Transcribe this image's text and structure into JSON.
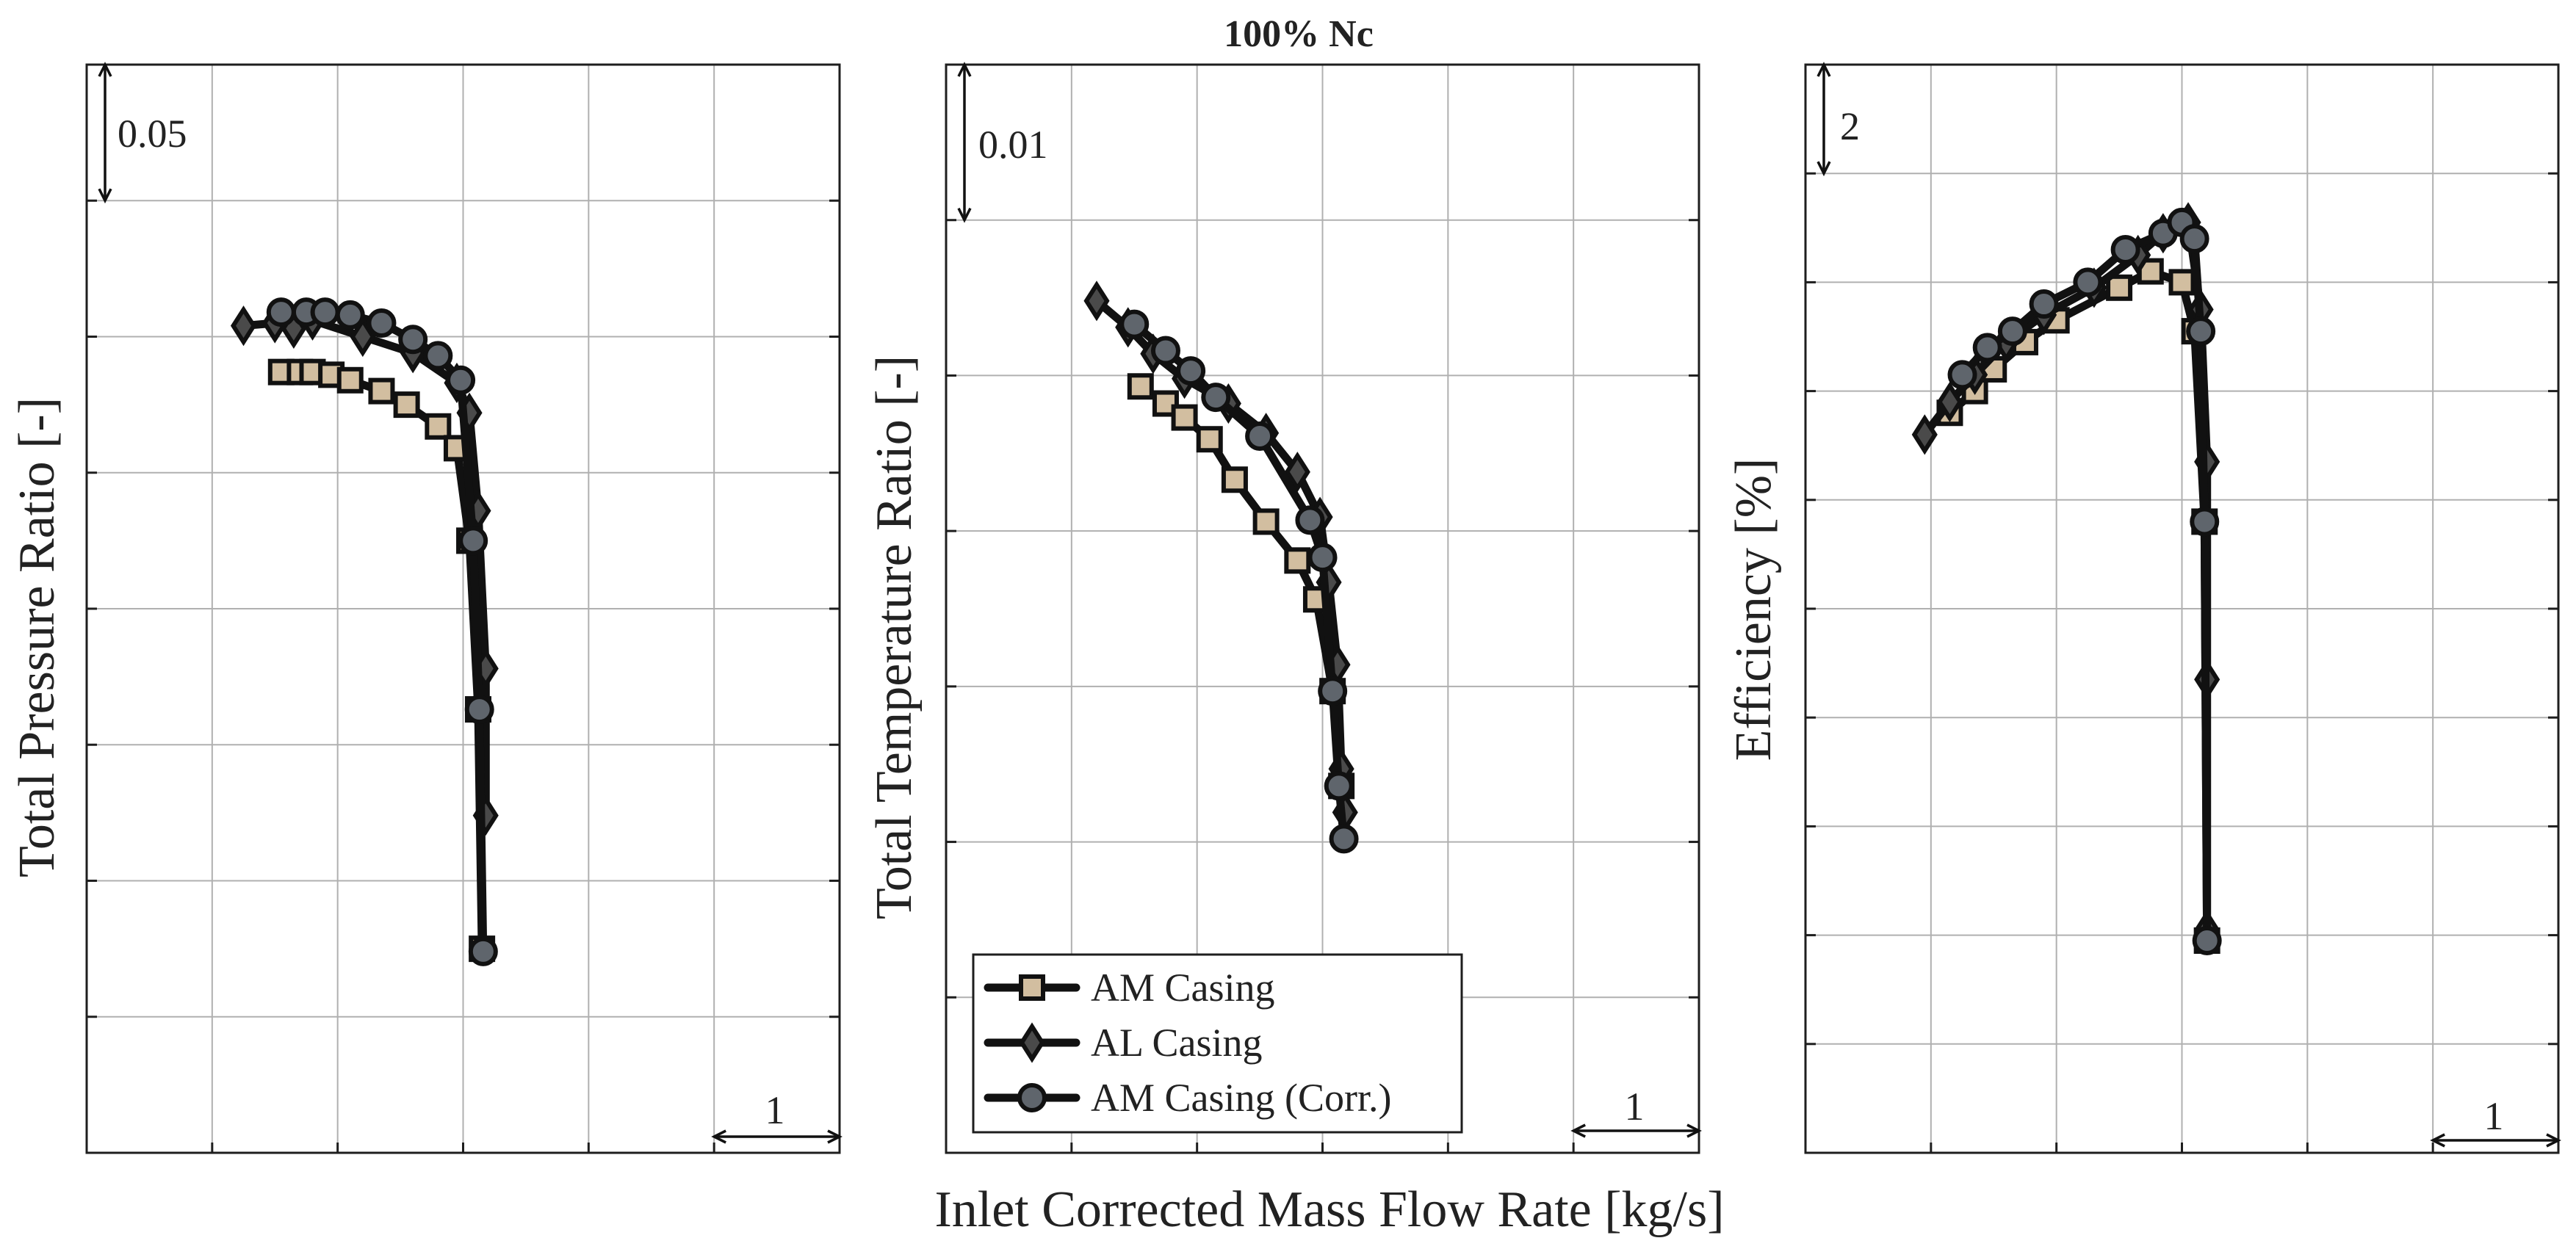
{
  "figure": {
    "title": "100% Nc",
    "xlabel": "Inlet Corrected Mass Flow Rate [kg/s]"
  },
  "colors": {
    "am_fill": "#d2bea0",
    "al_fill": "#4a4a4a",
    "corr_fill": "#5f656c",
    "line": "#111111",
    "grid": "#b0b0b0"
  },
  "legend": {
    "placement": "bottom-left of middle panel",
    "entries": [
      {
        "label": "AM Casing",
        "marker": "square"
      },
      {
        "label": "AL Casing",
        "marker": "diamond"
      },
      {
        "label": "AM Casing (Corr.)",
        "marker": "circle"
      }
    ]
  },
  "chart_data": [
    {
      "type": "line",
      "ylabel": "Total Pressure Ratio [-]",
      "xlabel": "Inlet Corrected Mass Flow Rate [kg/s]",
      "xlim": [
        0,
        6
      ],
      "ylim": [
        0,
        0.4
      ],
      "grid": true,
      "x_scale": {
        "label": "1",
        "value": 1
      },
      "y_scale": {
        "label": "0.05",
        "value": 0.05
      },
      "series": [
        {
          "name": "AM Casing",
          "marker": "square",
          "x": [
            1.55,
            1.7,
            1.8,
            1.95,
            2.1,
            2.35,
            2.55,
            2.8,
            2.95,
            3.05,
            3.12,
            3.15
          ],
          "y": [
            0.287,
            0.287,
            0.287,
            0.286,
            0.284,
            0.28,
            0.275,
            0.267,
            0.259,
            0.225,
            0.163,
            0.075
          ]
        },
        {
          "name": "AL Casing",
          "marker": "diamond",
          "x": [
            1.25,
            1.5,
            1.65,
            1.8,
            2.2,
            2.6,
            2.95,
            3.05,
            3.12,
            3.18,
            3.18
          ],
          "y": [
            0.304,
            0.305,
            0.303,
            0.306,
            0.3,
            0.294,
            0.283,
            0.272,
            0.236,
            0.178,
            0.124
          ]
        },
        {
          "name": "AM Casing (Corr.)",
          "marker": "circle",
          "x": [
            1.55,
            1.75,
            1.9,
            2.1,
            2.35,
            2.6,
            2.8,
            2.98,
            3.08,
            3.13,
            3.16
          ],
          "y": [
            0.309,
            0.309,
            0.309,
            0.308,
            0.305,
            0.299,
            0.293,
            0.284,
            0.225,
            0.163,
            0.074
          ]
        }
      ]
    },
    {
      "type": "line",
      "ylabel": "Total Temperature Ratio [-]",
      "xlabel": "Inlet Corrected Mass Flow Rate [kg/s]",
      "xlim": [
        0,
        6
      ],
      "ylim": [
        0,
        0.07
      ],
      "grid": true,
      "x_scale": {
        "label": "1",
        "value": 1
      },
      "y_scale": {
        "label": "0.01",
        "value": 0.01
      },
      "series": [
        {
          "name": "AM Casing",
          "marker": "square",
          "x": [
            1.55,
            1.75,
            1.9,
            2.1,
            2.3,
            2.55,
            2.8,
            2.95,
            3.08,
            3.15
          ],
          "y": [
            0.0493,
            0.0482,
            0.0473,
            0.0459,
            0.0433,
            0.0406,
            0.0381,
            0.0356,
            0.0297,
            0.0236
          ]
        },
        {
          "name": "AL Casing",
          "marker": "diamond",
          "x": [
            1.2,
            1.45,
            1.65,
            1.9,
            2.25,
            2.55,
            2.8,
            2.98,
            3.05,
            3.12,
            3.15,
            3.18
          ],
          "y": [
            0.0548,
            0.0531,
            0.0514,
            0.0498,
            0.0482,
            0.0463,
            0.0438,
            0.0409,
            0.0367,
            0.0314,
            0.0247,
            0.0219
          ]
        },
        {
          "name": "AM Casing (Corr.)",
          "marker": "circle",
          "x": [
            1.5,
            1.75,
            1.95,
            2.15,
            2.5,
            2.9,
            3.0,
            3.08,
            3.13,
            3.17
          ],
          "y": [
            0.0533,
            0.0516,
            0.0503,
            0.0486,
            0.0461,
            0.0407,
            0.0383,
            0.0297,
            0.0236,
            0.0202
          ]
        }
      ]
    },
    {
      "type": "line",
      "ylabel": "Efficiency [%]",
      "xlabel": "Inlet Corrected Mass Flow Rate [kg/s]",
      "xlim": [
        0,
        6
      ],
      "ylim": [
        0,
        20
      ],
      "grid": true,
      "x_scale": {
        "label": "1",
        "value": 1
      },
      "y_scale": {
        "label": "2",
        "value": 2
      },
      "series": [
        {
          "name": "AM Casing",
          "marker": "square",
          "x": [
            1.15,
            1.35,
            1.5,
            1.75,
            2.0,
            2.5,
            2.75,
            3.0,
            3.1,
            3.18,
            3.2
          ],
          "y": [
            13.6,
            14.0,
            14.4,
            14.9,
            15.3,
            15.9,
            16.2,
            16.0,
            15.1,
            11.6,
            3.9
          ]
        },
        {
          "name": "AL Casing",
          "marker": "diamond",
          "x": [
            0.95,
            1.15,
            1.35,
            1.6,
            1.9,
            2.3,
            2.65,
            2.85,
            3.05,
            3.15,
            3.2,
            3.2,
            3.2
          ],
          "y": [
            13.2,
            13.8,
            14.3,
            14.9,
            15.4,
            15.9,
            16.5,
            16.9,
            17.1,
            15.5,
            12.7,
            8.7,
            4.1
          ]
        },
        {
          "name": "AM Casing (Corr.)",
          "marker": "circle",
          "x": [
            1.25,
            1.45,
            1.65,
            1.9,
            2.25,
            2.55,
            2.85,
            3.0,
            3.1,
            3.15,
            3.18,
            3.2
          ],
          "y": [
            14.3,
            14.8,
            15.1,
            15.6,
            16.0,
            16.6,
            16.9,
            17.1,
            16.8,
            15.1,
            11.6,
            3.9
          ]
        }
      ]
    }
  ]
}
